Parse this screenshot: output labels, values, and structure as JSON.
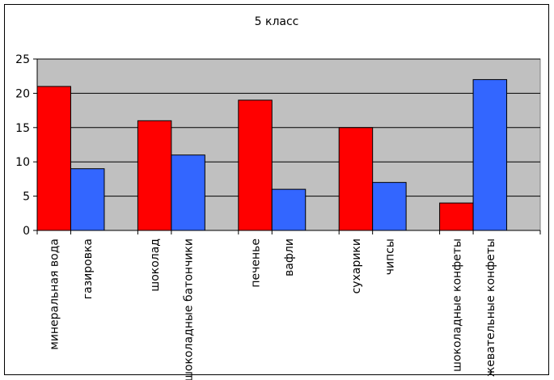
{
  "chart_data": {
    "type": "bar",
    "title": "5 класс",
    "xlabel": "",
    "ylabel": "",
    "ylim": [
      0,
      25
    ],
    "yticks": [
      0,
      5,
      10,
      15,
      20,
      25
    ],
    "grid": true,
    "legend": "none",
    "colors": {
      "red": "#ff0000",
      "blue": "#3366ff",
      "plot_bg": "#c0c0c0"
    },
    "categories": [
      "минеральная вода",
      "газировка",
      "шоколад",
      "шоколадные батончики",
      "печенье",
      "вафли",
      "сухарики",
      "чипсы",
      "шоколадные конфеты",
      "жевательные конфеты"
    ],
    "values": [
      21,
      9,
      16,
      11,
      19,
      6,
      15,
      7,
      4,
      22
    ],
    "bar_colors": [
      "red",
      "blue",
      "red",
      "blue",
      "red",
      "blue",
      "red",
      "blue",
      "red",
      "blue"
    ]
  }
}
